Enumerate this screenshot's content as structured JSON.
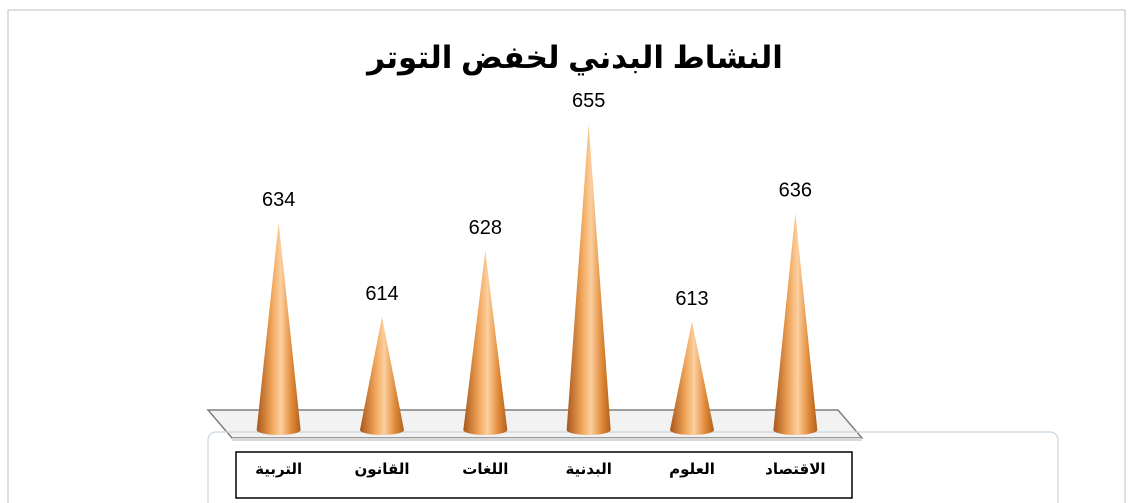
{
  "chart_data": {
    "type": "cone",
    "title": "النشاط البدني لخفض التوتر",
    "categories": [
      "التربية",
      "القانون",
      "اللغات",
      "البدنية",
      "العلوم",
      "الاقتصاد"
    ],
    "values": [
      634,
      614,
      628,
      655,
      613,
      636
    ],
    "color": "#e8913c",
    "ylim": [
      590,
      660
    ]
  }
}
